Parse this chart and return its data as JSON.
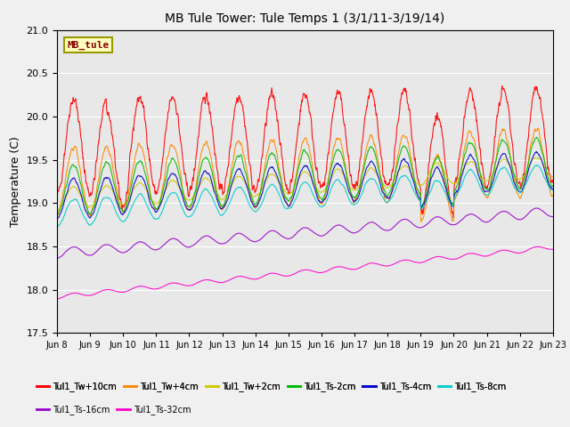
{
  "title": "MB Tule Tower: Tule Temps 1 (3/1/11-3/19/14)",
  "ylabel": "Temperature (C)",
  "ylim": [
    17.5,
    21.0
  ],
  "yticks": [
    17.5,
    18.0,
    18.5,
    19.0,
    19.5,
    20.0,
    20.5,
    21.0
  ],
  "xtick_labels": [
    "Jun 8",
    "Jun 9",
    "Jun 10",
    "Jun 11",
    "Jun 12",
    "Jun 13",
    "Jun 14",
    "Jun 15",
    "Jun 16",
    "Jun 17",
    "Jun 18",
    "Jun 19",
    "Jun 20",
    "Jun 21",
    "Jun 22",
    "Jun 23"
  ],
  "series": [
    {
      "name": "Tul1_Tw+10cm",
      "color": "#ff0000"
    },
    {
      "name": "Tul1_Tw+4cm",
      "color": "#ff8800"
    },
    {
      "name": "Tul1_Tw+2cm",
      "color": "#cccc00"
    },
    {
      "name": "Tul1_Ts-2cm",
      "color": "#00bb00"
    },
    {
      "name": "Tul1_Ts-4cm",
      "color": "#0000cc"
    },
    {
      "name": "Tul1_Ts-8cm",
      "color": "#00cccc"
    },
    {
      "name": "Tul1_Ts-16cm",
      "color": "#9900cc"
    },
    {
      "name": "Tul1_Ts-32cm",
      "color": "#ff00cc"
    }
  ],
  "legend_box": {
    "text": "MB_tule",
    "facecolor": "#ffffc0",
    "edgecolor": "#999900",
    "textcolor": "#880000"
  },
  "fig_facecolor": "#f0f0f0",
  "ax_facecolor": "#e8e8e8"
}
